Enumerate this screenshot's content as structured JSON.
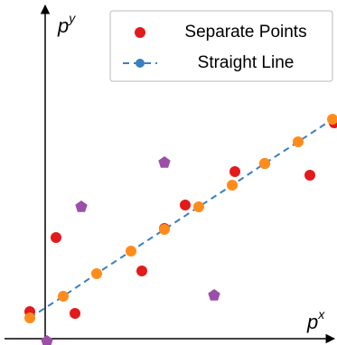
{
  "chart_data": {
    "type": "scatter",
    "x_label": "p",
    "x_label_sup": "x",
    "y_label": "p",
    "y_label_sup": "y",
    "xlim": [
      -45,
      323
    ],
    "ylim": [
      -7,
      370
    ],
    "legend": "upper right",
    "series": [
      {
        "name": "Separate Points",
        "color": "#e31a1c",
        "marker": "circle",
        "x": [
          -17,
          12,
          33,
          107,
          155,
          210,
          293,
          132,
          243,
          320
        ],
        "values": [
          30,
          112,
          28,
          75,
          148,
          185,
          181,
          122,
          194,
          239
        ]
      },
      {
        "name": "Straight Line",
        "color": "#3a7fc0",
        "marker": "circle",
        "line": "dashed",
        "x": [
          -17,
          20,
          57,
          95,
          132,
          170,
          207,
          243,
          280,
          318
        ],
        "values": [
          23,
          47,
          72,
          97,
          121,
          146,
          170,
          194,
          218,
          243
        ]
      },
      {
        "color": "#ff8c1a",
        "marker": "circle",
        "x": [
          -17,
          20,
          57,
          95,
          132,
          170,
          207,
          243,
          280,
          318
        ],
        "values": [
          23,
          47,
          72,
          97,
          121,
          146,
          170,
          194,
          218,
          243
        ]
      },
      {
        "color": "#9b4fa8",
        "marker": "pentagon",
        "x": [
          40,
          132,
          187,
          2
        ],
        "values": [
          146,
          195,
          48,
          -3
        ]
      }
    ]
  }
}
